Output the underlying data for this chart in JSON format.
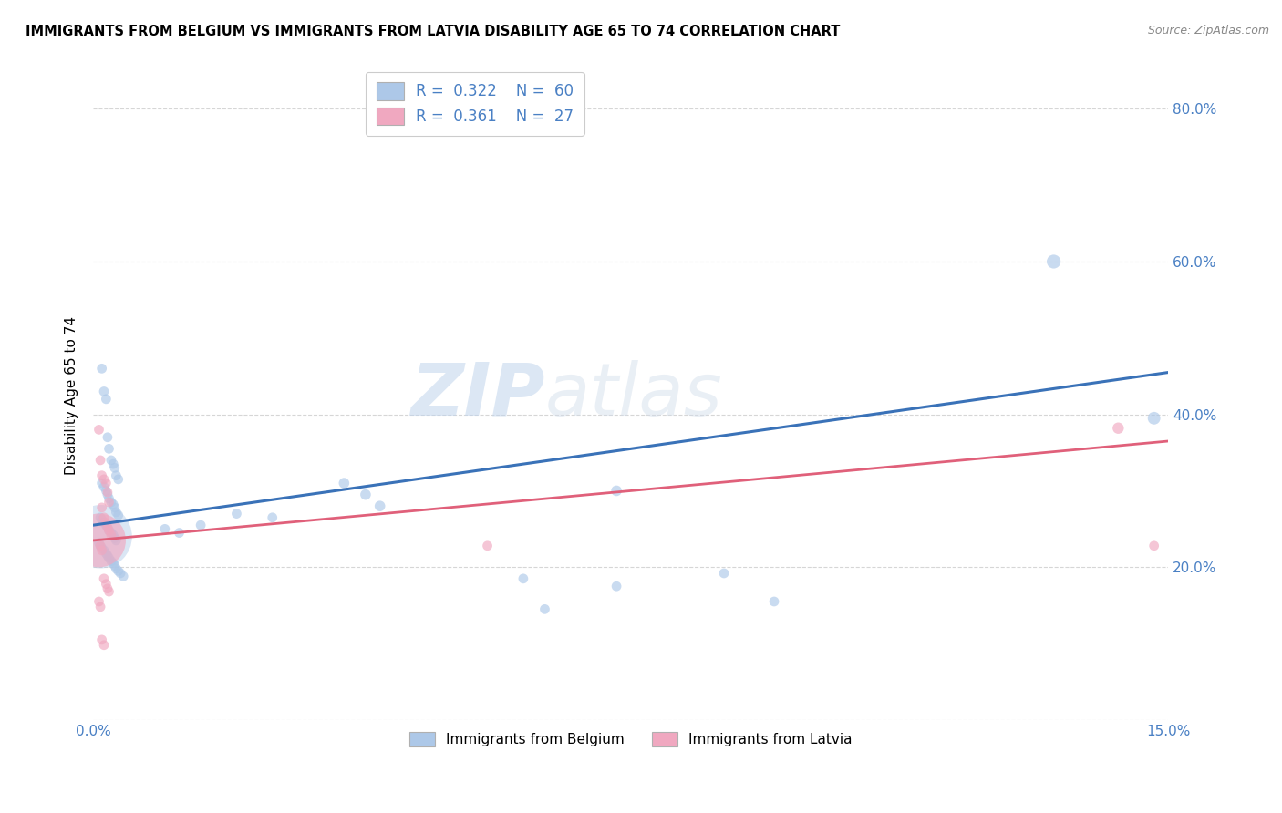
{
  "title": "IMMIGRANTS FROM BELGIUM VS IMMIGRANTS FROM LATVIA DISABILITY AGE 65 TO 74 CORRELATION CHART",
  "source": "Source: ZipAtlas.com",
  "ylabel": "Disability Age 65 to 74",
  "x_min": 0.0,
  "x_max": 0.15,
  "y_min": 0.0,
  "y_max": 0.85,
  "belgium_color": "#adc8e8",
  "belgium_line_color": "#3a72b8",
  "latvia_color": "#f0a8c0",
  "latvia_line_color": "#e0607a",
  "legend_belgium_label_r": "R = ",
  "legend_belgium_r_val": "0.322",
  "legend_belgium_n": "   N = ",
  "legend_belgium_n_val": "60",
  "legend_latvia_label_r": "R = ",
  "legend_latvia_r_val": "0.361",
  "legend_latvia_n": "   N = ",
  "legend_latvia_n_val": "27",
  "legend_bottom_belgium": "Immigrants from Belgium",
  "legend_bottom_latvia": "Immigrants from Latvia",
  "watermark": "ZIPatlas",
  "bel_line_x0": 0.0,
  "bel_line_x1": 0.15,
  "bel_line_y0": 0.255,
  "bel_line_y1": 0.455,
  "lat_line_x0": 0.0,
  "lat_line_x1": 0.15,
  "lat_line_y0": 0.235,
  "lat_line_y1": 0.365,
  "belgium_points": [
    [
      0.0012,
      0.46
    ],
    [
      0.0015,
      0.43
    ],
    [
      0.0018,
      0.42
    ],
    [
      0.002,
      0.37
    ],
    [
      0.0022,
      0.355
    ],
    [
      0.0025,
      0.34
    ],
    [
      0.0028,
      0.335
    ],
    [
      0.003,
      0.33
    ],
    [
      0.0032,
      0.32
    ],
    [
      0.0035,
      0.315
    ],
    [
      0.0012,
      0.31
    ],
    [
      0.0015,
      0.305
    ],
    [
      0.0018,
      0.3
    ],
    [
      0.002,
      0.295
    ],
    [
      0.0022,
      0.29
    ],
    [
      0.0025,
      0.285
    ],
    [
      0.0028,
      0.282
    ],
    [
      0.003,
      0.278
    ],
    [
      0.0032,
      0.272
    ],
    [
      0.0035,
      0.268
    ],
    [
      0.001,
      0.265
    ],
    [
      0.0012,
      0.262
    ],
    [
      0.0015,
      0.258
    ],
    [
      0.0018,
      0.255
    ],
    [
      0.002,
      0.252
    ],
    [
      0.0022,
      0.248
    ],
    [
      0.0025,
      0.245
    ],
    [
      0.0028,
      0.242
    ],
    [
      0.003,
      0.238
    ],
    [
      0.0032,
      0.235
    ],
    [
      0.0008,
      0.232
    ],
    [
      0.001,
      0.228
    ],
    [
      0.0012,
      0.225
    ],
    [
      0.0015,
      0.222
    ],
    [
      0.0018,
      0.218
    ],
    [
      0.002,
      0.215
    ],
    [
      0.0022,
      0.212
    ],
    [
      0.0025,
      0.208
    ],
    [
      0.0028,
      0.205
    ],
    [
      0.003,
      0.202
    ],
    [
      0.0032,
      0.198
    ],
    [
      0.0035,
      0.195
    ],
    [
      0.0038,
      0.192
    ],
    [
      0.0042,
      0.188
    ],
    [
      0.035,
      0.31
    ],
    [
      0.038,
      0.295
    ],
    [
      0.04,
      0.28
    ],
    [
      0.06,
      0.185
    ],
    [
      0.063,
      0.145
    ],
    [
      0.073,
      0.3
    ],
    [
      0.073,
      0.175
    ],
    [
      0.088,
      0.192
    ],
    [
      0.095,
      0.155
    ],
    [
      0.134,
      0.6
    ],
    [
      0.148,
      0.395
    ],
    [
      0.01,
      0.25
    ],
    [
      0.012,
      0.245
    ],
    [
      0.015,
      0.255
    ],
    [
      0.02,
      0.27
    ],
    [
      0.025,
      0.265
    ]
  ],
  "belgium_sizes": [
    60,
    60,
    60,
    60,
    60,
    60,
    60,
    60,
    60,
    60,
    60,
    60,
    60,
    60,
    60,
    60,
    60,
    60,
    60,
    60,
    60,
    60,
    60,
    60,
    60,
    60,
    60,
    60,
    60,
    60,
    60,
    60,
    60,
    60,
    60,
    60,
    60,
    60,
    60,
    60,
    60,
    60,
    60,
    60,
    70,
    70,
    70,
    60,
    60,
    70,
    60,
    60,
    60,
    120,
    100,
    60,
    60,
    60,
    60,
    60
  ],
  "latvia_points": [
    [
      0.0008,
      0.38
    ],
    [
      0.001,
      0.34
    ],
    [
      0.0012,
      0.32
    ],
    [
      0.0015,
      0.315
    ],
    [
      0.0018,
      0.31
    ],
    [
      0.002,
      0.298
    ],
    [
      0.0022,
      0.285
    ],
    [
      0.0012,
      0.278
    ],
    [
      0.0015,
      0.265
    ],
    [
      0.0018,
      0.258
    ],
    [
      0.002,
      0.252
    ],
    [
      0.0022,
      0.248
    ],
    [
      0.0025,
      0.242
    ],
    [
      0.0008,
      0.235
    ],
    [
      0.001,
      0.228
    ],
    [
      0.0012,
      0.222
    ],
    [
      0.0015,
      0.185
    ],
    [
      0.0018,
      0.178
    ],
    [
      0.002,
      0.172
    ],
    [
      0.0022,
      0.168
    ],
    [
      0.0008,
      0.155
    ],
    [
      0.001,
      0.148
    ],
    [
      0.0012,
      0.105
    ],
    [
      0.0015,
      0.098
    ],
    [
      0.055,
      0.228
    ],
    [
      0.143,
      0.382
    ],
    [
      0.148,
      0.228
    ]
  ],
  "latvia_sizes": [
    60,
    60,
    60,
    60,
    60,
    60,
    60,
    60,
    60,
    60,
    60,
    60,
    60,
    1800,
    60,
    60,
    60,
    60,
    60,
    60,
    60,
    60,
    60,
    60,
    60,
    80,
    60
  ]
}
